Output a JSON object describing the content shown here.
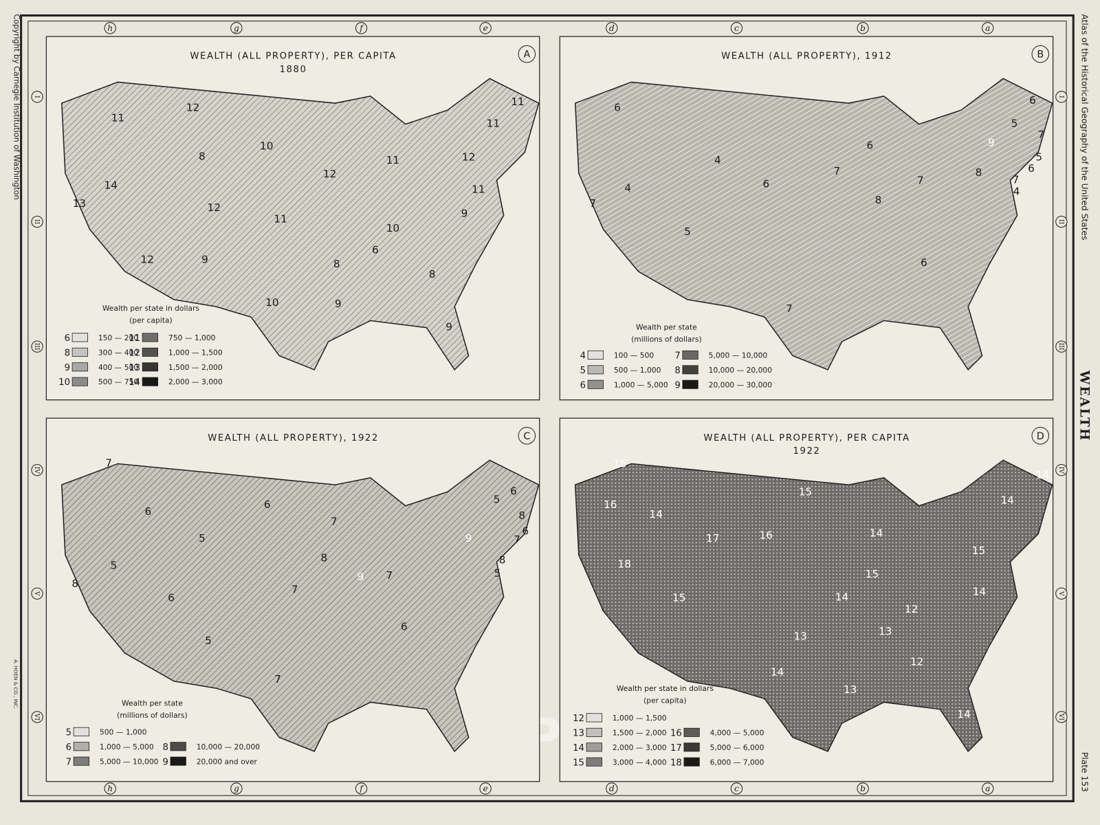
{
  "side": {
    "copyright": "Copyright by Carnegie Institution of Washington",
    "atlas": "Atlas of the Historical Geography of the United States",
    "section": "WEALTH",
    "plate": "Plate 153",
    "engraver": "A. HOEN & CO., INC.",
    "watermark": "Historic Pictoric ®"
  },
  "border": {
    "columns": [
      "h",
      "g",
      "f",
      "e",
      "d",
      "c",
      "b",
      "a"
    ],
    "rows": [
      "I",
      "II",
      "III",
      "IV",
      "V",
      "VI"
    ]
  },
  "maps": [
    {
      "letter": "A",
      "title": [
        "WEALTH (ALL PROPERTY), PER CAPITA",
        "1880"
      ],
      "legend_title": [
        "Wealth per state in dollars",
        "(per capita)"
      ],
      "legend": [
        {
          "code": "6",
          "range": "150 — 200"
        },
        {
          "code": "8",
          "range": "300 — 400"
        },
        {
          "code": "9",
          "range": "400 — 500"
        },
        {
          "code": "10",
          "range": "500 — 750"
        },
        {
          "code": "11",
          "range": "750 — 1,000"
        },
        {
          "code": "12",
          "range": "1,000 — 1,500"
        },
        {
          "code": "13",
          "range": "1,500 — 2,000"
        },
        {
          "code": "14",
          "range": "2,000 — 3,000"
        }
      ],
      "labels": [
        "11",
        "12",
        "8",
        "10",
        "14",
        "13",
        "12",
        "11",
        "12",
        "11",
        "12",
        "11",
        "11",
        "11",
        "9",
        "10",
        "6",
        "8",
        "8",
        "12",
        "9",
        "10",
        "9",
        "9"
      ]
    },
    {
      "letter": "B",
      "title": [
        "WEALTH (ALL PROPERTY), 1912"
      ],
      "legend_title": [
        "Wealth per state",
        "(millions of dollars)"
      ],
      "legend": [
        {
          "code": "4",
          "range": "100 — 500"
        },
        {
          "code": "5",
          "range": "500 — 1,000"
        },
        {
          "code": "6",
          "range": "1,000 — 5,000"
        },
        {
          "code": "7",
          "range": "5,000 — 10,000"
        },
        {
          "code": "8",
          "range": "10,000 — 20,000"
        },
        {
          "code": "9",
          "range": "20,000 — 30,000"
        }
      ],
      "labels": [
        "6",
        "4",
        "4",
        "7",
        "5",
        "6",
        "7",
        "6",
        "8",
        "7",
        "9",
        "8",
        "6",
        "5",
        "7",
        "5",
        "6",
        "7",
        "4",
        "6",
        "7"
      ]
    },
    {
      "letter": "C",
      "title": [
        "WEALTH (ALL PROPERTY), 1922"
      ],
      "legend_title": [
        "Wealth per state",
        "(millions of dollars)"
      ],
      "legend": [
        {
          "code": "5",
          "range": "500 — 1,000"
        },
        {
          "code": "6",
          "range": "1,000 — 5,000"
        },
        {
          "code": "7",
          "range": "5,000 — 10,000"
        },
        {
          "code": "8",
          "range": "10,000 — 20,000"
        },
        {
          "code": "9",
          "range": "20,000 and over"
        }
      ],
      "labels": [
        "7",
        "6",
        "6",
        "5",
        "5",
        "8",
        "6",
        "5",
        "7",
        "8",
        "7",
        "9",
        "7",
        "9",
        "5",
        "6",
        "8",
        "7",
        "6",
        "8",
        "5",
        "6",
        "7"
      ]
    },
    {
      "letter": "D",
      "title": [
        "WEALTH (ALL PROPERTY), PER CAPITA",
        "1922"
      ],
      "legend_title": [
        "Wealth per state in dollars",
        "(per capita)"
      ],
      "legend": [
        {
          "code": "12",
          "range": "1,000 — 1,500"
        },
        {
          "code": "13",
          "range": "1,500 — 2,000"
        },
        {
          "code": "14",
          "range": "2,000 — 3,000"
        },
        {
          "code": "15",
          "range": "3,000 — 4,000"
        },
        {
          "code": "16",
          "range": "4,000 — 5,000"
        },
        {
          "code": "17",
          "range": "5,000 — 6,000"
        },
        {
          "code": "18",
          "range": "6,000 — 7,000"
        }
      ],
      "labels": [
        "15",
        "16",
        "14",
        "15",
        "17",
        "16",
        "18",
        "15",
        "14",
        "14",
        "15",
        "12",
        "15",
        "14",
        "14",
        "14",
        "13",
        "13",
        "12",
        "14",
        "13",
        "14"
      ]
    }
  ]
}
